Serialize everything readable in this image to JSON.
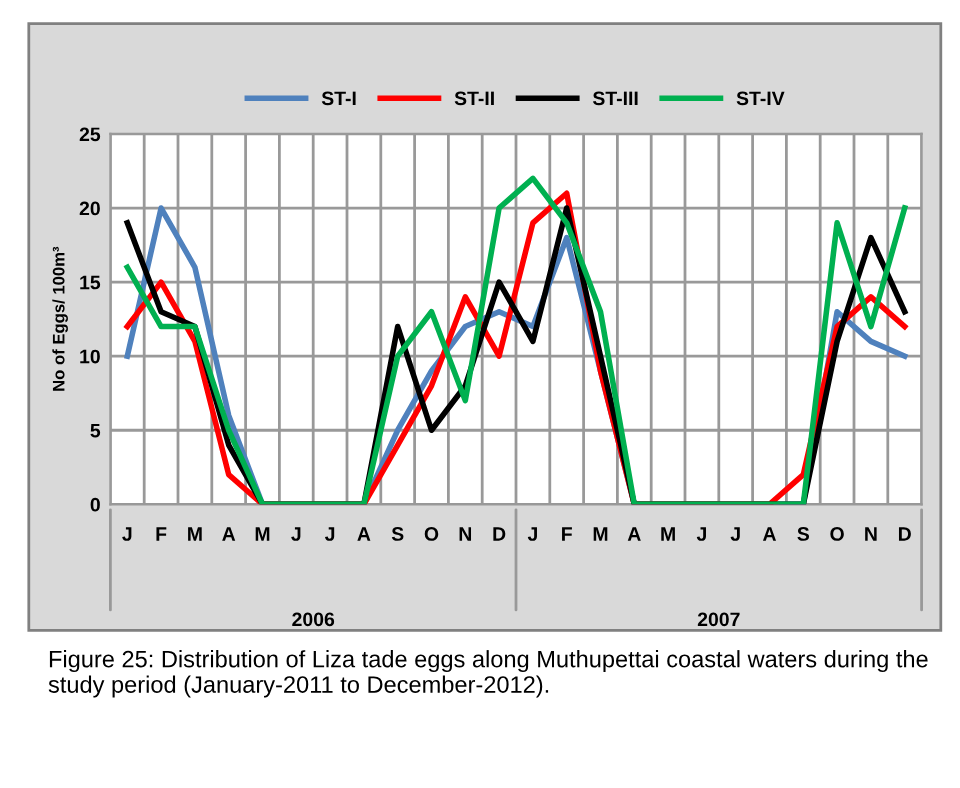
{
  "chart_data": {
    "type": "line",
    "ylabel": "No of Eggs/ 100m³",
    "categories": [
      "J",
      "F",
      "M",
      "A",
      "M",
      "J",
      "J",
      "A",
      "S",
      "O",
      "N",
      "D",
      "J",
      "F",
      "M",
      "A",
      "M",
      "J",
      "J",
      "A",
      "S",
      "O",
      "N",
      "D"
    ],
    "series": [
      {
        "name": "ST-I",
        "color": "#4f81bd",
        "values": [
          10,
          20,
          16,
          6,
          0,
          0,
          0,
          0,
          5,
          9,
          12,
          13,
          12,
          18,
          9,
          0,
          0,
          0,
          0,
          0,
          0,
          13,
          11,
          10
        ]
      },
      {
        "name": "ST-II",
        "color": "#ff0000",
        "values": [
          12,
          15,
          11,
          2,
          0,
          0,
          0,
          0,
          4,
          8,
          14,
          10,
          19,
          21,
          9,
          0,
          0,
          0,
          0,
          0,
          2,
          12,
          14,
          12
        ]
      },
      {
        "name": "ST-III",
        "color": "#000000",
        "values": [
          19,
          13,
          12,
          4,
          0,
          0,
          0,
          0,
          12,
          5,
          8,
          15,
          11,
          20,
          10,
          0,
          0,
          0,
          0,
          0,
          0,
          11,
          18,
          13
        ]
      },
      {
        "name": "ST-IV",
        "color": "#00b050",
        "values": [
          16,
          12,
          12,
          5,
          0,
          0,
          0,
          0,
          10,
          13,
          7,
          20,
          22,
          19,
          13,
          0,
          0,
          0,
          0,
          0,
          0,
          19,
          12,
          20
        ]
      }
    ],
    "ylim": [
      0,
      25
    ],
    "yticks": [
      0,
      5,
      10,
      15,
      20,
      25
    ],
    "grid": true,
    "legend": "top",
    "marker": "none",
    "line_style": "solid",
    "annotations": [
      "2006",
      "2007",
      "Figure 25: Distribution of Liza tade eggs along Muthupettai coastal waters during the study period (January-2011 to December-2012)."
    ]
  }
}
